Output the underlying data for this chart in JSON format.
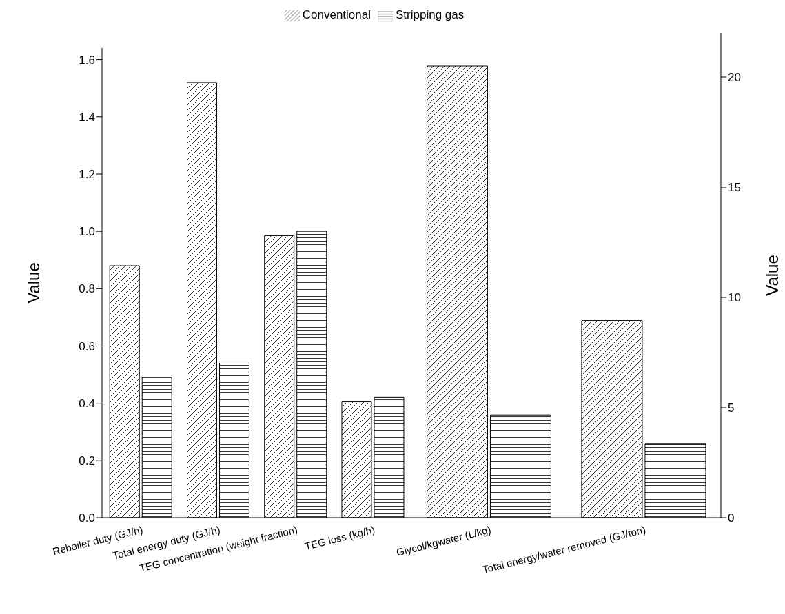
{
  "chart_data": [
    {
      "type": "bar",
      "ylabel": "Value",
      "categories": [
        "Reboiler duty (GJ/h)",
        "Total energy duty (GJ/h)",
        "TEG concentration (weight fraction)",
        "TEG loss (kg/h)"
      ],
      "series": [
        {
          "name": "Conventional",
          "color": "#000000",
          "values": [
            0.88,
            1.52,
            0.985,
            0.405
          ]
        },
        {
          "name": "Stripping gas",
          "color": "#000000",
          "values": [
            0.49,
            0.54,
            1.0,
            0.42
          ]
        }
      ],
      "ylim": [
        0,
        1.64
      ],
      "yticks": [
        {
          "value": 0,
          "label": "0.0"
        },
        {
          "value": 0.2,
          "label": "0.2"
        },
        {
          "value": 0.4,
          "label": "0.4"
        },
        {
          "value": 0.6,
          "label": "0.6"
        },
        {
          "value": 0.8,
          "label": "0.8"
        },
        {
          "value": 1,
          "label": "1.0"
        },
        {
          "value": 1.2,
          "label": "1.2"
        },
        {
          "value": 1.4,
          "label": "1.4"
        },
        {
          "value": 1.6,
          "label": "1.6"
        }
      ],
      "legend": "top",
      "grid": false
    },
    {
      "type": "bar",
      "y2label": "Value",
      "categories": [
        "Glycol/kgwater (L/kg)",
        "Total energy/water removed (GJ/ton)"
      ],
      "series": [
        {
          "color": "#000000",
          "axis": "y2",
          "values": [
            20.5,
            8.95
          ]
        },
        {
          "color": "#000000",
          "axis": "y2",
          "values": [
            4.65,
            3.35
          ]
        }
      ],
      "y2lim": [
        0,
        22
      ],
      "y2ticks": [
        0,
        5,
        10,
        15,
        20
      ],
      "grid": false
    }
  ]
}
